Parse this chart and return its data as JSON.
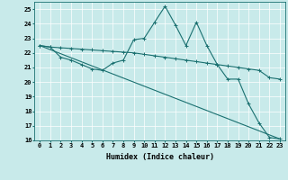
{
  "xlabel": "Humidex (Indice chaleur)",
  "ylabel": "",
  "background_color": "#c8eaea",
  "grid_color": "#ffffff",
  "line_color": "#1a7070",
  "xlim": [
    -0.5,
    23.5
  ],
  "ylim": [
    16,
    25.5
  ],
  "xticks": [
    0,
    1,
    2,
    3,
    4,
    5,
    6,
    7,
    8,
    9,
    10,
    11,
    12,
    13,
    14,
    15,
    16,
    17,
    18,
    19,
    20,
    21,
    22,
    23
  ],
  "yticks": [
    16,
    17,
    18,
    19,
    20,
    21,
    22,
    23,
    24,
    25
  ],
  "series1_x": [
    0,
    1,
    2,
    3,
    4,
    5,
    6,
    7,
    8,
    9,
    10,
    11,
    12,
    13,
    14,
    15,
    16,
    17,
    18,
    19,
    20,
    21,
    22,
    23
  ],
  "series1_y": [
    22.5,
    22.4,
    21.7,
    21.5,
    21.2,
    20.9,
    20.8,
    21.3,
    21.5,
    22.9,
    23.0,
    24.1,
    25.2,
    23.9,
    22.5,
    24.1,
    22.5,
    21.2,
    20.2,
    20.2,
    18.5,
    17.2,
    16.2,
    16.1
  ],
  "series2_x": [
    0,
    1,
    2,
    3,
    4,
    5,
    6,
    7,
    8,
    9,
    10,
    11,
    12,
    13,
    14,
    15,
    16,
    17,
    18,
    19,
    20,
    21,
    22,
    23
  ],
  "series2_y": [
    22.5,
    22.4,
    22.35,
    22.3,
    22.25,
    22.2,
    22.15,
    22.1,
    22.05,
    22.0,
    21.9,
    21.8,
    21.7,
    21.6,
    21.5,
    21.4,
    21.3,
    21.2,
    21.1,
    21.0,
    20.9,
    20.8,
    20.3,
    20.2
  ],
  "series3_x": [
    0,
    23
  ],
  "series3_y": [
    22.5,
    16.1
  ],
  "xlabel_fontsize": 6,
  "tick_fontsize": 5,
  "ylabel_fontsize": 5,
  "figsize": [
    3.2,
    2.0
  ],
  "dpi": 100
}
